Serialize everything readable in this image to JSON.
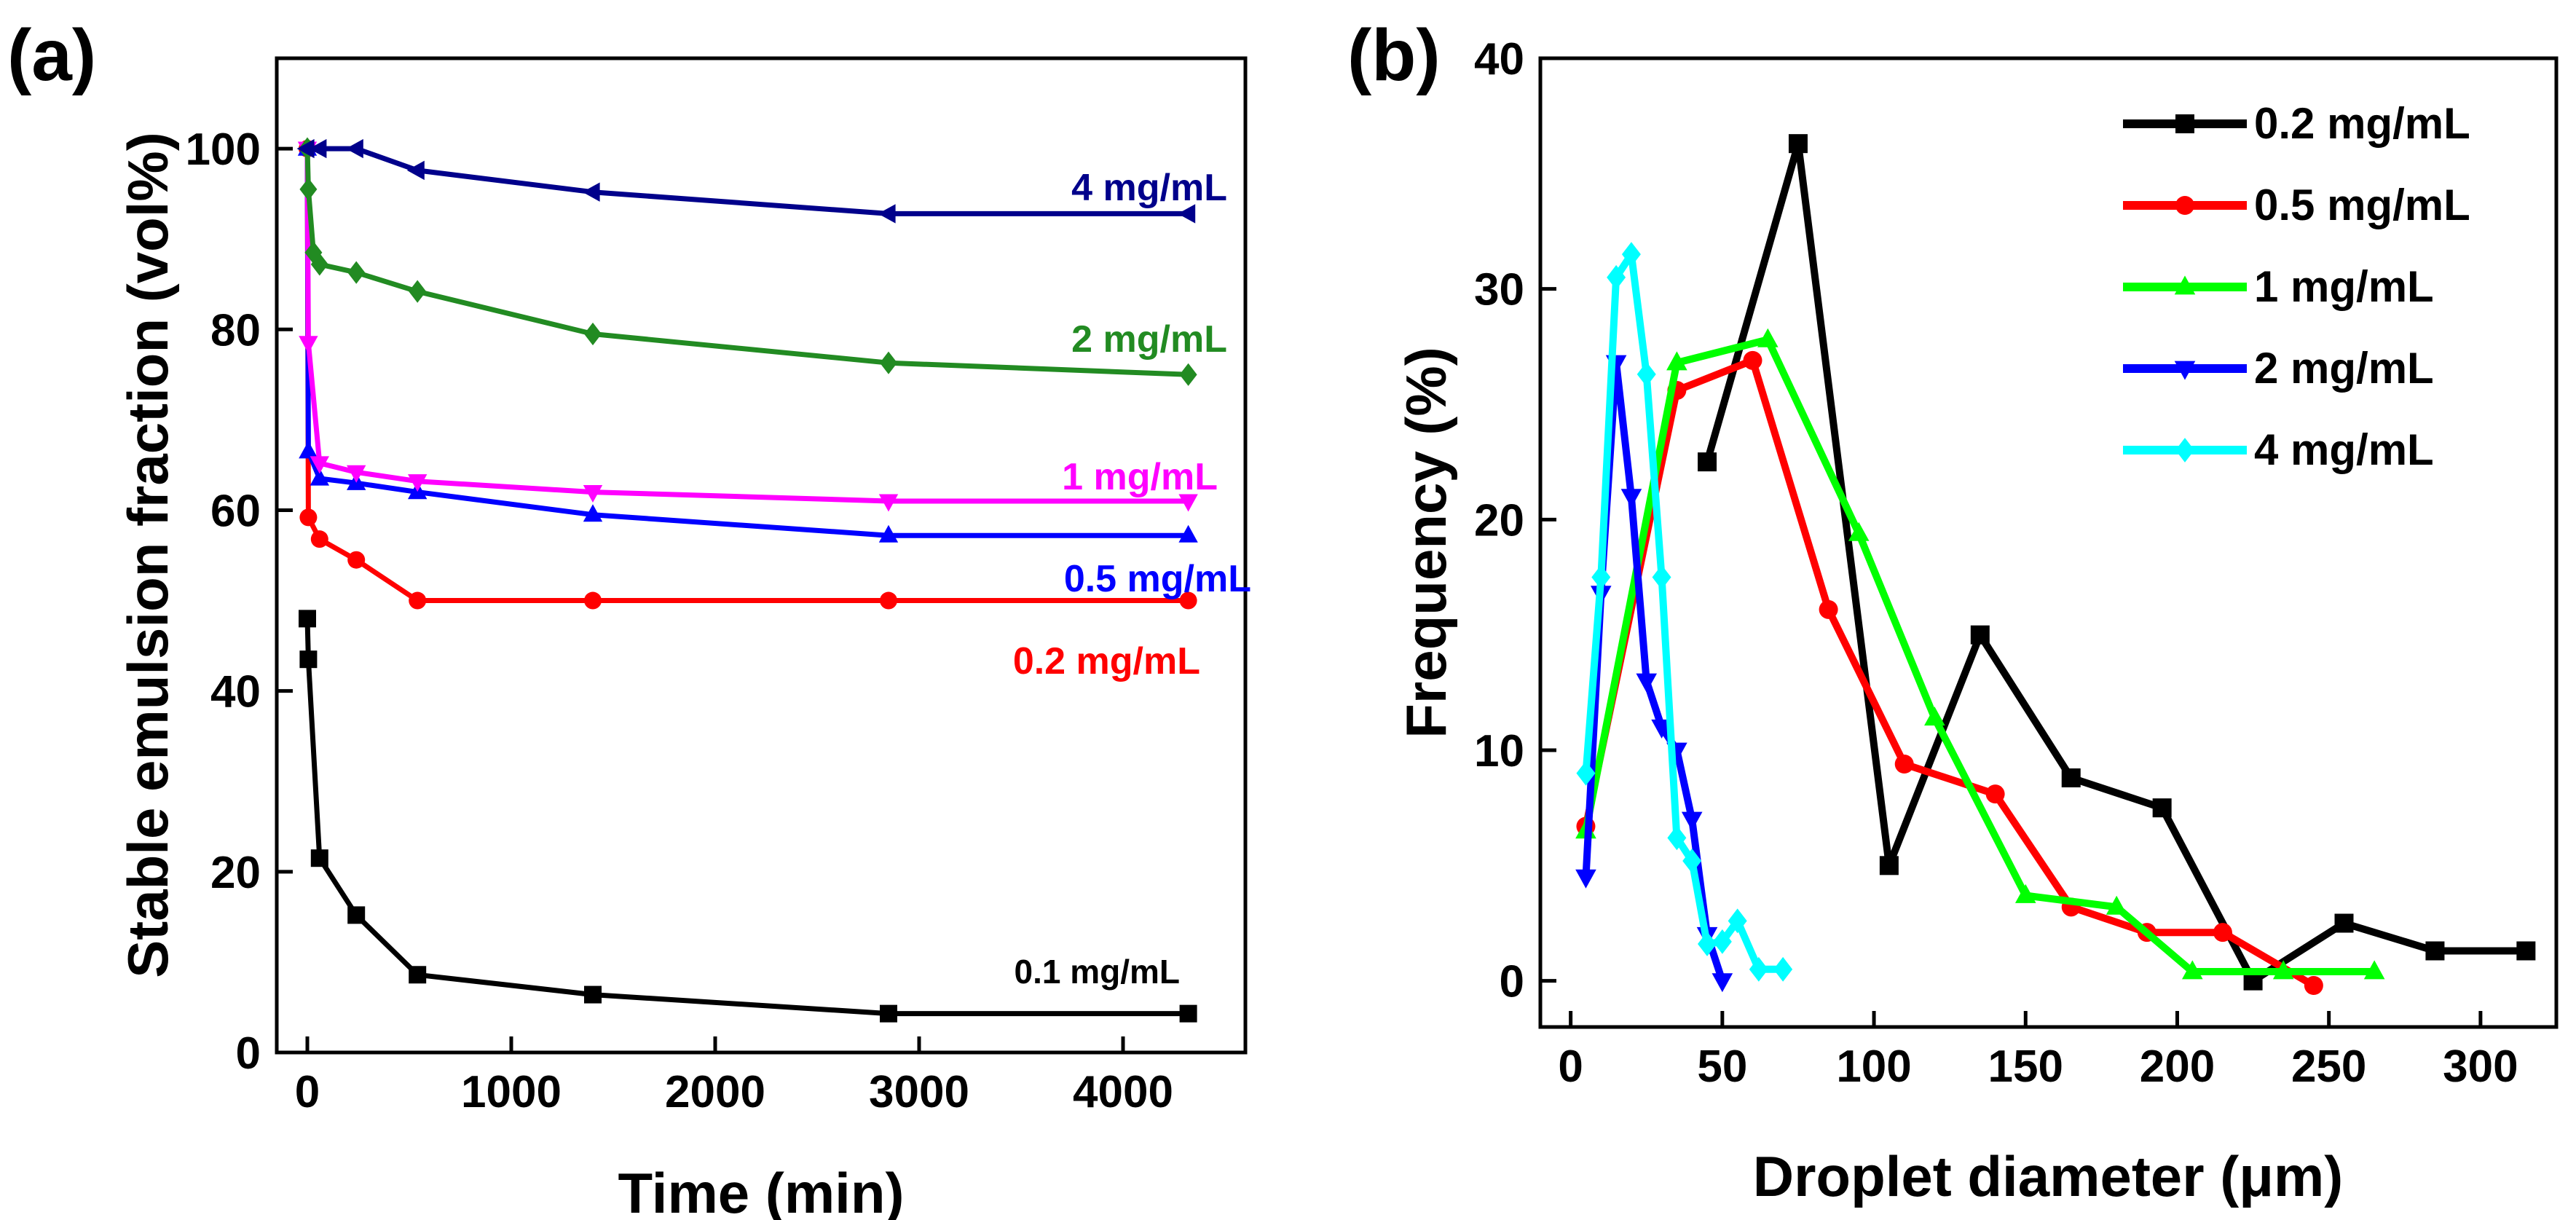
{
  "chart_data": [
    {
      "panel_label": "(a)",
      "type": "line",
      "xlabel": "Time (min)",
      "ylabel": "Stable emulsion fraction (vol%)",
      "xlim": [
        -150,
        4600
      ],
      "ylim": [
        0,
        110
      ],
      "xticks": [
        0,
        1000,
        2000,
        3000,
        4000
      ],
      "yticks": [
        0,
        20,
        40,
        60,
        80,
        100
      ],
      "legend": "none",
      "grid": false,
      "series": [
        {
          "name": "0.1 mg/mL",
          "label": "0.1 mg/mL",
          "color": "#000000",
          "marker": "square",
          "x": [
            0,
            5,
            60,
            240,
            540,
            1400,
            2850,
            4320
          ],
          "y": [
            48,
            43.5,
            21.5,
            15.2,
            8.6,
            6.4,
            4.3,
            4.3
          ]
        },
        {
          "name": "0.2 mg/mL",
          "label": "0.2 mg/mL",
          "color": "#ff0000",
          "marker": "circle",
          "x": [
            0,
            5,
            60,
            240,
            540,
            1400,
            2850,
            4320
          ],
          "y": [
            100,
            59.2,
            56.8,
            54.5,
            50,
            50,
            50,
            50
          ]
        },
        {
          "name": "0.5 mg/mL",
          "label": "0.5 mg/mL",
          "color": "#0000ff",
          "marker": "triangle-up",
          "x": [
            0,
            5,
            60,
            240,
            540,
            1400,
            2850,
            4320
          ],
          "y": [
            100,
            66.5,
            63.5,
            63,
            62,
            59.5,
            57.2,
            57.2
          ]
        },
        {
          "name": "1 mg/mL",
          "label": "1 mg/mL",
          "color": "#ff00ff",
          "marker": "triangle-down",
          "x": [
            0,
            5,
            60,
            240,
            540,
            1400,
            2850,
            4320
          ],
          "y": [
            100,
            78.5,
            65.2,
            64.2,
            63.2,
            62,
            61,
            61
          ]
        },
        {
          "name": "2 mg/mL",
          "label": "2 mg/mL",
          "color": "#228b22",
          "marker": "diamond",
          "x": [
            0,
            5,
            30,
            60,
            240,
            540,
            1400,
            2850,
            4320
          ],
          "y": [
            100,
            95.5,
            88.5,
            87.2,
            86.3,
            84.2,
            79.5,
            76.3,
            75
          ]
        },
        {
          "name": "4 mg/mL",
          "label": "4 mg/mL",
          "color": "#00008b",
          "marker": "triangle-left",
          "x": [
            0,
            60,
            240,
            540,
            1400,
            2850,
            4320
          ],
          "y": [
            100,
            100,
            100,
            97.6,
            95.2,
            92.8,
            92.8
          ]
        }
      ]
    },
    {
      "panel_label": "(b)",
      "type": "line",
      "xlabel": "Droplet diameter (μm)",
      "ylabel": "Frequency (%)",
      "xlim": [
        -10,
        325
      ],
      "ylim": [
        -2,
        40
      ],
      "xticks": [
        0,
        50,
        100,
        150,
        200,
        250,
        300
      ],
      "yticks": [
        0,
        10,
        20,
        30,
        40
      ],
      "legend": "top-right",
      "grid": false,
      "series": [
        {
          "name": "0.2 mg/mL",
          "color": "#000000",
          "marker": "square",
          "x": [
            45,
            75,
            105,
            135,
            165,
            195,
            225,
            255,
            285,
            315
          ],
          "y": [
            22.5,
            36.3,
            5,
            15,
            8.8,
            7.5,
            0,
            2.5,
            1.3,
            1.3
          ]
        },
        {
          "name": "0.5 mg/mL",
          "color": "#ff0000",
          "marker": "circle",
          "x": [
            5,
            35,
            60,
            85,
            110,
            140,
            165,
            190,
            215,
            245
          ],
          "y": [
            6.7,
            25.6,
            26.9,
            16.1,
            9.4,
            8.1,
            3.2,
            2.1,
            2.1,
            -0.2
          ]
        },
        {
          "name": "1 mg/mL",
          "color": "#00ff00",
          "marker": "triangle-up",
          "x": [
            5,
            35,
            65,
            95,
            120,
            150,
            180,
            205,
            235,
            265
          ],
          "y": [
            6.5,
            26.8,
            27.8,
            19.4,
            11.4,
            3.7,
            3.2,
            0.4,
            0.4,
            0.4
          ]
        },
        {
          "name": "2 mg/mL",
          "color": "#0000ff",
          "marker": "triangle-down",
          "x": [
            5,
            10,
            15,
            20,
            25,
            30,
            35,
            40,
            45,
            50
          ],
          "y": [
            4.5,
            16.8,
            26.8,
            21,
            13,
            11,
            10,
            7,
            2,
            0
          ]
        },
        {
          "name": "4 mg/mL",
          "color": "#00ffff",
          "marker": "diamond",
          "x": [
            5,
            10,
            15,
            20,
            25,
            30,
            35,
            40,
            45,
            50,
            55,
            62,
            70
          ],
          "y": [
            9,
            17.5,
            30.5,
            31.5,
            26.3,
            17.5,
            6.2,
            5.2,
            1.6,
            1.7,
            2.6,
            0.5,
            0.5
          ]
        }
      ]
    }
  ]
}
